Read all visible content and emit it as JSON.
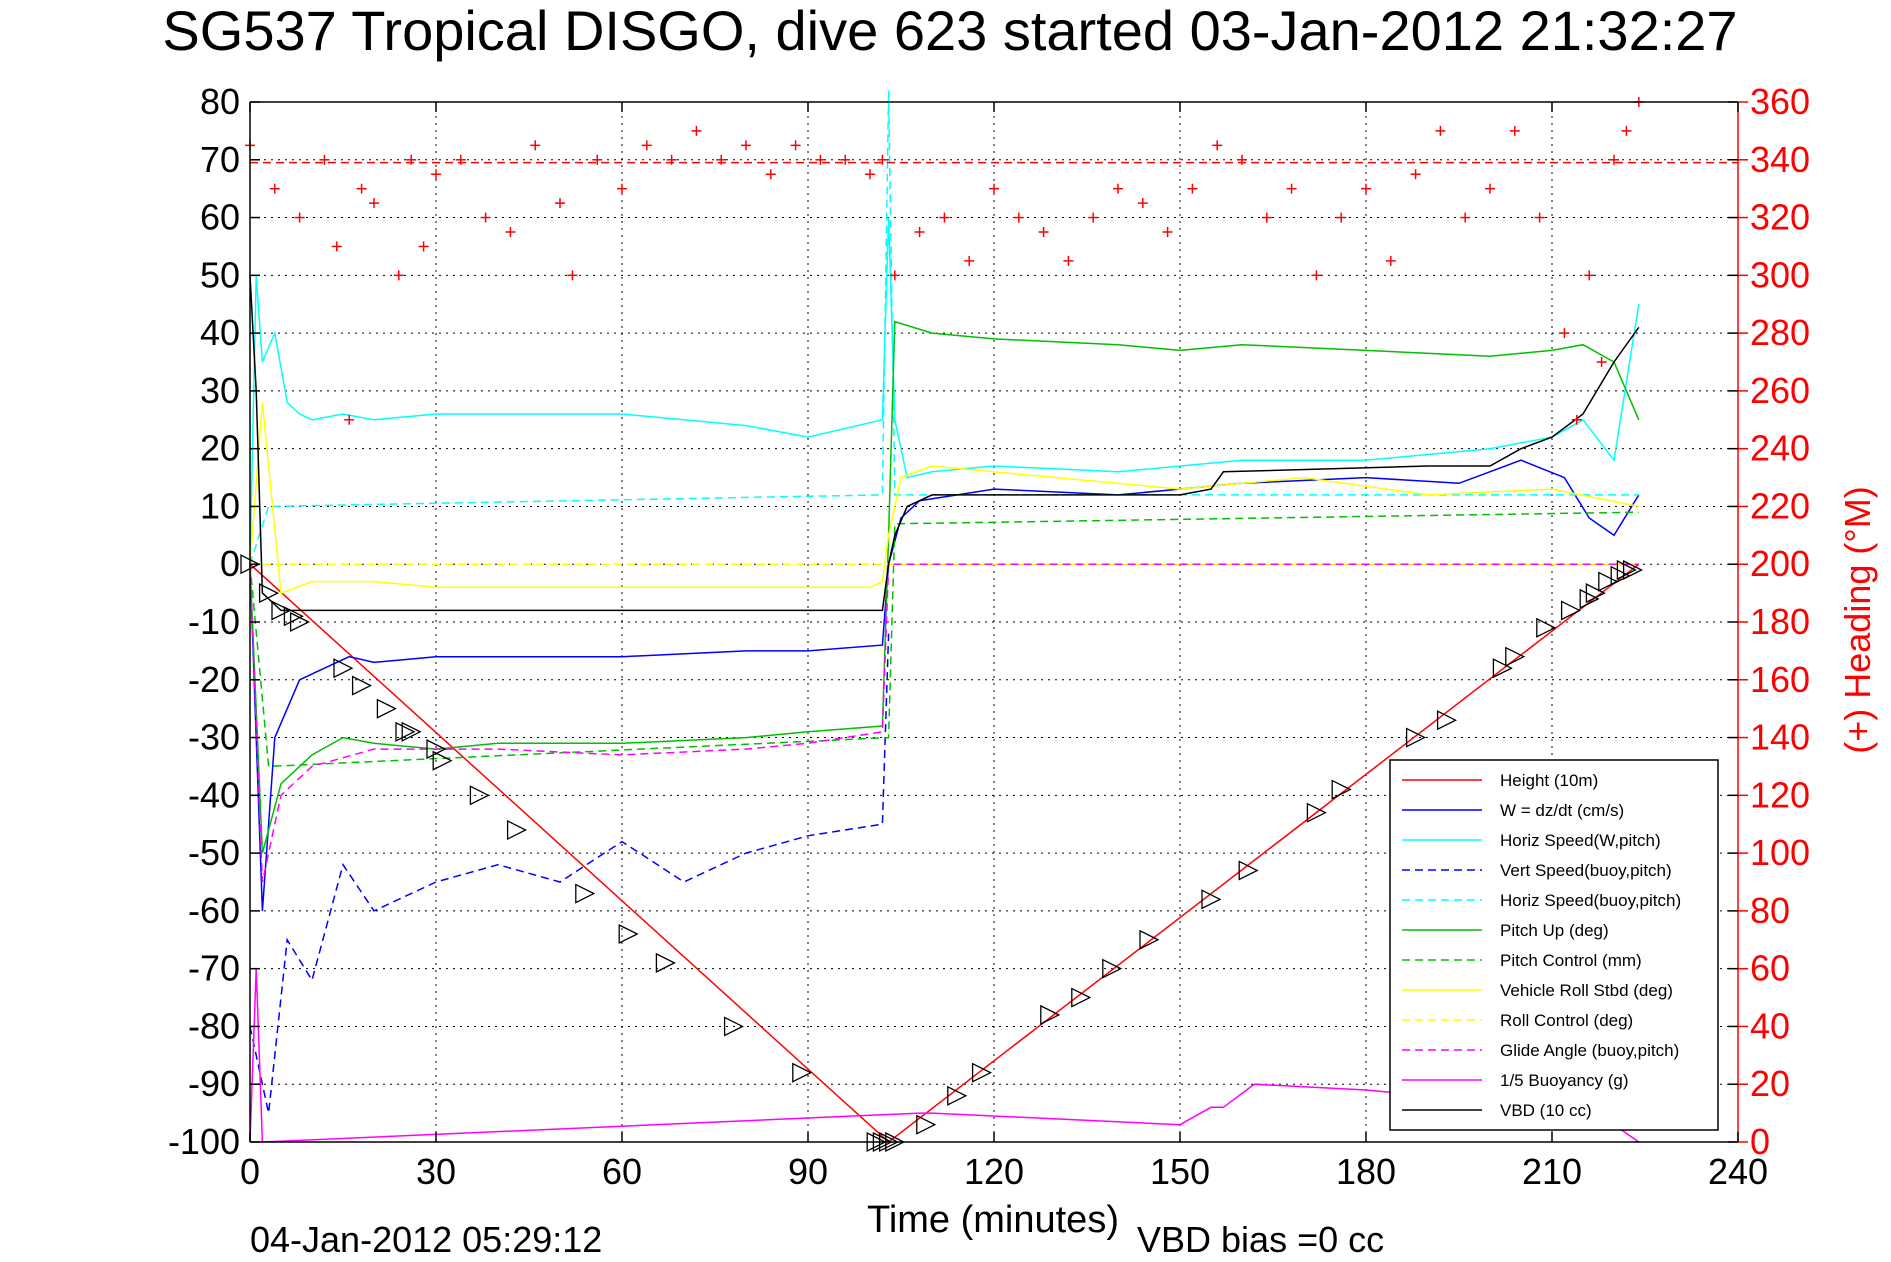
{
  "chart_data": {
    "type": "line",
    "title": "SG537 Tropical DISGO, dive 623 started 03-Jan-2012 21:32:27",
    "xlabel": "Time (minutes)",
    "ylabel_right": "(+) Heading (°M)",
    "footer_left": "04-Jan-2012 05:29:12",
    "footer_right": "VBD bias =0 cc",
    "xlim": [
      0,
      240
    ],
    "ylim": [
      -100,
      80
    ],
    "ylim_right": [
      0,
      360
    ],
    "x_ticks": [
      "0",
      "30",
      "60",
      "90",
      "120",
      "150",
      "180",
      "210",
      "240"
    ],
    "y_ticks": [
      "80",
      "70",
      "60",
      "50",
      "40",
      "30",
      "20",
      "10",
      "0",
      "-10",
      "-20",
      "-30",
      "-40",
      "-50",
      "-60",
      "-70",
      "-80",
      "-90",
      "-100"
    ],
    "y_right_ticks": [
      "360",
      "340",
      "320",
      "300",
      "280",
      "260",
      "240",
      "220",
      "200",
      "180",
      "160",
      "140",
      "120",
      "100",
      "80",
      "60",
      "40",
      "20",
      "0"
    ],
    "grid": true,
    "legend_position": "bottom-right",
    "series": [
      {
        "name": "Height (10m)",
        "color": "#ff0000",
        "style": "solid",
        "x": [
          0,
          103,
          224
        ],
        "y": [
          0,
          -100,
          0
        ]
      },
      {
        "name": "W = dz/dt (cm/s)",
        "color": "#0000ff",
        "style": "solid",
        "x": [
          0,
          2,
          4,
          6,
          8,
          12,
          16,
          20,
          30,
          40,
          60,
          80,
          90,
          102,
          103,
          105,
          108,
          120,
          140,
          160,
          180,
          195,
          205,
          212,
          216,
          220,
          224
        ],
        "y": [
          0,
          -60,
          -30,
          -25,
          -20,
          -18,
          -16,
          -17,
          -16,
          -16,
          -16,
          -15,
          -15,
          -14,
          0,
          8,
          11,
          13,
          12,
          14,
          15,
          14,
          18,
          15,
          8,
          5,
          12
        ]
      },
      {
        "name": "Horiz Speed(W,pitch)",
        "color": "#00ffff",
        "style": "solid",
        "x": [
          0,
          1,
          2,
          4,
          6,
          8,
          10,
          15,
          20,
          30,
          40,
          60,
          70,
          80,
          90,
          102,
          103,
          104,
          106,
          110,
          120,
          140,
          160,
          180,
          200,
          210,
          215,
          220,
          224
        ],
        "y": [
          0,
          50,
          35,
          40,
          28,
          26,
          25,
          26,
          25,
          26,
          26,
          26,
          25,
          24,
          22,
          25,
          60,
          25,
          15,
          16,
          17,
          16,
          18,
          18,
          20,
          22,
          25,
          18,
          45
        ]
      },
      {
        "name": "Vert Speed(buoy,pitch)",
        "color": "#0000ff",
        "style": "dashed",
        "x": [
          0,
          3,
          6,
          10,
          15,
          20,
          30,
          40,
          50,
          60,
          70,
          80,
          90,
          102,
          103
        ],
        "y": [
          -80,
          -95,
          -65,
          -72,
          -52,
          -60,
          -55,
          -52,
          -55,
          -48,
          -55,
          -50,
          -47,
          -45,
          -12
        ]
      },
      {
        "name": "Horiz Speed(buoy,pitch)",
        "color": "#00ffff",
        "style": "dashed",
        "x": [
          0,
          3,
          102,
          103,
          104,
          224
        ],
        "y": [
          0,
          10,
          12,
          82,
          12,
          12
        ]
      },
      {
        "name": "Pitch Up (deg)",
        "color": "#00c000",
        "style": "solid",
        "x": [
          0,
          2,
          5,
          10,
          15,
          20,
          30,
          40,
          60,
          80,
          90,
          102,
          103,
          104,
          110,
          120,
          140,
          150,
          160,
          180,
          200,
          210,
          215,
          220,
          224
        ],
        "y": [
          0,
          -50,
          -38,
          -33,
          -30,
          -31,
          -32,
          -31,
          -31,
          -30,
          -29,
          -28,
          5,
          42,
          40,
          39,
          38,
          37,
          38,
          37,
          36,
          37,
          38,
          35,
          25
        ]
      },
      {
        "name": "Pitch Control (mm)",
        "color": "#00c000",
        "style": "dashed",
        "x": [
          0,
          3,
          103,
          104,
          224
        ],
        "y": [
          0,
          -35,
          -30,
          7,
          9
        ]
      },
      {
        "name": "Vehicle Roll Stbd (deg)",
        "color": "#ffff00",
        "style": "solid",
        "x": [
          0,
          2,
          5,
          10,
          20,
          30,
          40,
          60,
          80,
          100,
          102,
          103,
          105,
          110,
          130,
          150,
          170,
          190,
          210,
          224
        ],
        "y": [
          0,
          28,
          -5,
          -3,
          -3,
          -4,
          -4,
          -4,
          -4,
          -4,
          -3,
          5,
          15,
          17,
          15,
          13,
          15,
          12,
          13,
          10
        ]
      },
      {
        "name": "Roll Control (deg)",
        "color": "#ffff00",
        "style": "dashed",
        "x": [
          0,
          3,
          224
        ],
        "y": [
          0,
          0,
          0
        ]
      },
      {
        "name": "Glide Angle (buoy,pitch)",
        "color": "#ff00ff",
        "style": "dashed",
        "x": [
          0,
          2,
          5,
          10,
          20,
          40,
          60,
          80,
          90,
          102,
          103,
          224
        ],
        "y": [
          0,
          -55,
          -40,
          -35,
          -32,
          -32,
          -33,
          -32,
          -31,
          -29,
          0,
          0
        ]
      },
      {
        "name": "1/5 Buoyancy (g)",
        "color": "#ff00ff",
        "style": "solid",
        "x": [
          0,
          1,
          2,
          108,
          110,
          130,
          150,
          155,
          157,
          162,
          180,
          200,
          210,
          220,
          224
        ],
        "y": [
          -100,
          -70,
          -100,
          -95,
          -95,
          -96,
          -97,
          -94,
          -94,
          -90,
          -91,
          -93,
          -95,
          -97,
          -100
        ]
      },
      {
        "name": "VBD (10 cc)",
        "color": "#000000",
        "style": "solid",
        "x": [
          0,
          1,
          2,
          5,
          10,
          20,
          40,
          60,
          80,
          102,
          103,
          104,
          106,
          110,
          150,
          155,
          157,
          190,
          200,
          205,
          210,
          215,
          220,
          224
        ],
        "y": [
          50,
          30,
          -5,
          -8,
          -8,
          -8,
          -8,
          -8,
          -8,
          -8,
          0,
          5,
          10,
          12,
          12,
          13,
          16,
          17,
          17,
          20,
          22,
          26,
          35,
          41
        ]
      }
    ],
    "heading_points": {
      "name": "Heading",
      "color": "#ff0000",
      "axis": "right",
      "x": [
        0,
        4,
        8,
        12,
        14,
        16,
        18,
        20,
        24,
        26,
        28,
        30,
        34,
        38,
        42,
        46,
        50,
        52,
        56,
        60,
        64,
        68,
        72,
        76,
        80,
        84,
        88,
        92,
        96,
        100,
        102,
        104,
        108,
        112,
        116,
        120,
        124,
        128,
        132,
        136,
        140,
        144,
        148,
        152,
        156,
        160,
        164,
        168,
        172,
        176,
        180,
        184,
        188,
        192,
        196,
        200,
        204,
        208,
        212,
        214,
        216,
        218,
        220,
        222,
        224
      ],
      "y": [
        345,
        330,
        320,
        340,
        310,
        250,
        330,
        325,
        300,
        340,
        310,
        335,
        340,
        320,
        315,
        345,
        325,
        300,
        340,
        330,
        345,
        340,
        350,
        340,
        345,
        335,
        345,
        340,
        340,
        335,
        340,
        300,
        315,
        320,
        305,
        330,
        320,
        315,
        305,
        320,
        330,
        325,
        315,
        330,
        345,
        340,
        320,
        330,
        300,
        320,
        330,
        305,
        335,
        350,
        320,
        330,
        350,
        320,
        280,
        250,
        300,
        270,
        340,
        350,
        360
      ]
    },
    "reference_line": {
      "axis": "right",
      "y": 339,
      "color": "#ff0000",
      "style": "dashed"
    },
    "markers": {
      "color": "#000000",
      "x": [
        0,
        3,
        5,
        7,
        8,
        15,
        18,
        22,
        25,
        26,
        30,
        31,
        37,
        43,
        54,
        61,
        67,
        78,
        89,
        101,
        102,
        103,
        104,
        109,
        114,
        118,
        129,
        134,
        139,
        145,
        155,
        161,
        172,
        176,
        188,
        193,
        202,
        204,
        209,
        213,
        216,
        217,
        219,
        221,
        222,
        223
      ],
      "y": [
        0,
        -5,
        -8,
        -9,
        -10,
        -18,
        -21,
        -25,
        -29,
        -29,
        -32,
        -34,
        -40,
        -46,
        -57,
        -64,
        -69,
        -80,
        -88,
        -100,
        -100,
        -100,
        -100,
        -97,
        -92,
        -88,
        -78,
        -75,
        -70,
        -65,
        -58,
        -53,
        -43,
        -39,
        -30,
        -27,
        -18,
        -16,
        -11,
        -8,
        -6,
        -5,
        -3,
        -2,
        -1,
        -1
      ]
    }
  }
}
